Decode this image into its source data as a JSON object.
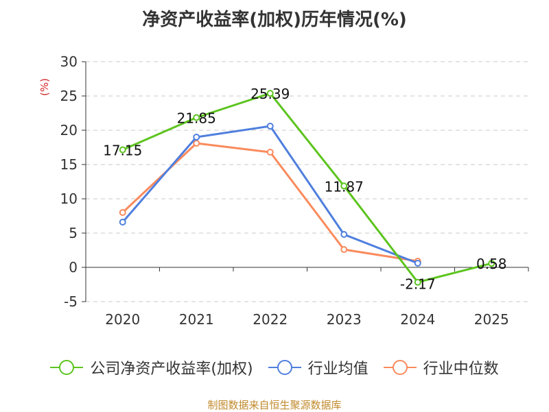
{
  "title": "净资产收益率(加权)历年情况(%)",
  "source": "制图数据来自恒生聚源数据库",
  "colors": {
    "company": "#5cc41e",
    "industry_avg": "#4f7fde",
    "industry_median": "#fa8a5c",
    "unit_label": "#d62728"
  },
  "chart_data": {
    "type": "line",
    "title": "净资产收益率(加权)历年情况(%)",
    "ylabel": "(%)",
    "xlabel": "",
    "categories": [
      "2020",
      "2021",
      "2022",
      "2023",
      "2024",
      "2025"
    ],
    "ylim": [
      -5,
      30
    ],
    "yticks": [
      -5,
      0,
      5,
      10,
      15,
      20,
      25,
      30
    ],
    "grid": true,
    "legend_position": "bottom",
    "series": [
      {
        "name": "公司净资产收益率(加权)",
        "values": [
          17.15,
          21.85,
          25.39,
          11.87,
          -2.17,
          0.58
        ],
        "labels": [
          "17.15",
          "21.85",
          "25.39",
          "11.87",
          "-2.17",
          "0.58"
        ]
      },
      {
        "name": "行业均值",
        "values": [
          6.6,
          19.0,
          20.6,
          4.8,
          0.6,
          null
        ]
      },
      {
        "name": "行业中位数",
        "values": [
          8.0,
          18.1,
          16.8,
          2.6,
          0.9,
          null
        ]
      }
    ]
  }
}
